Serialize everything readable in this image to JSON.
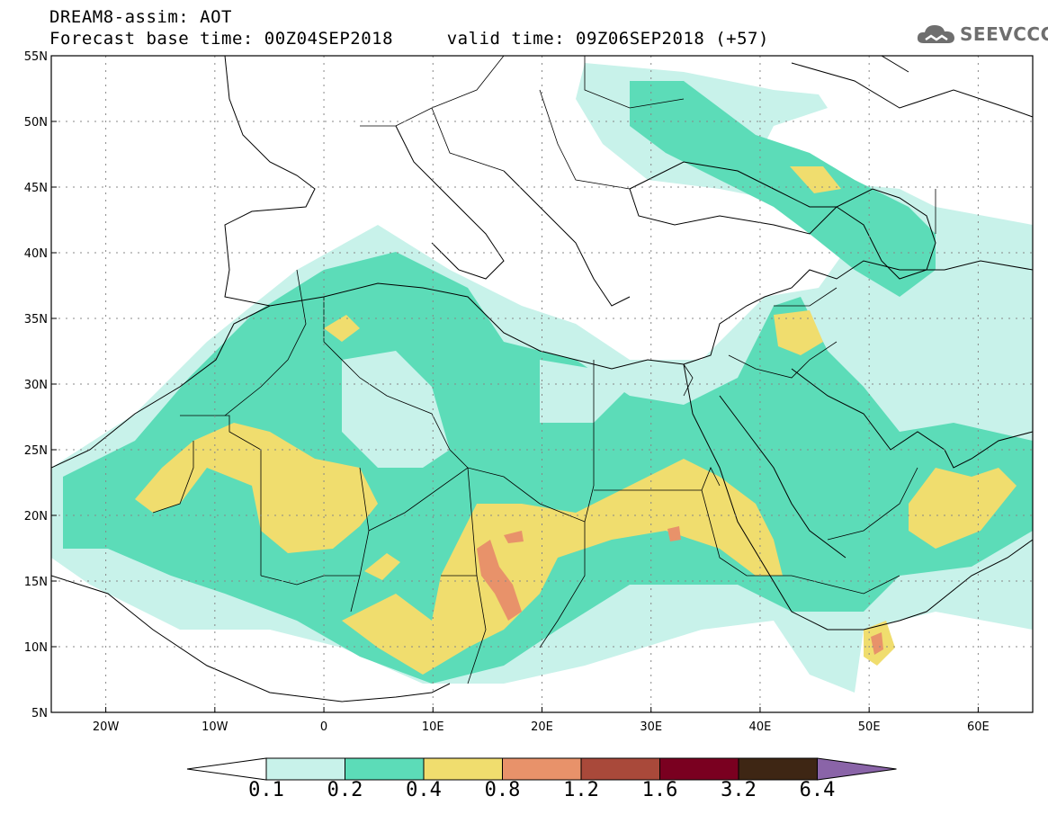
{
  "header": {
    "title_line1": "DREAM8-assim: AOT",
    "title_line2": "Forecast base time: 00Z04SEP2018     valid time: 09Z06SEP2018 (+57)"
  },
  "logo": {
    "text": "SEEVCCC",
    "icon": "cloud-icon"
  },
  "map": {
    "lon_range": [
      -25,
      65
    ],
    "lat_range": [
      5,
      55
    ],
    "y_ticks": [
      "5N",
      "10N",
      "15N",
      "20N",
      "25N",
      "30N",
      "35N",
      "40N",
      "45N",
      "50N",
      "55N"
    ],
    "x_ticks": [
      "20W",
      "10W",
      "0",
      "10E",
      "20E",
      "30E",
      "40E",
      "50E",
      "60E"
    ],
    "gridlines": "dotted"
  },
  "colorbar": {
    "labels": [
      "0.1",
      "0.2",
      "0.4",
      "0.8",
      "1.2",
      "1.6",
      "3.2",
      "6.4"
    ],
    "colors": [
      "#ffffff",
      "#c8f2ea",
      "#5cdcb8",
      "#f0dd6e",
      "#e8926a",
      "#a9493a",
      "#7a0020",
      "#3e2614",
      "#8a64a8"
    ]
  }
}
